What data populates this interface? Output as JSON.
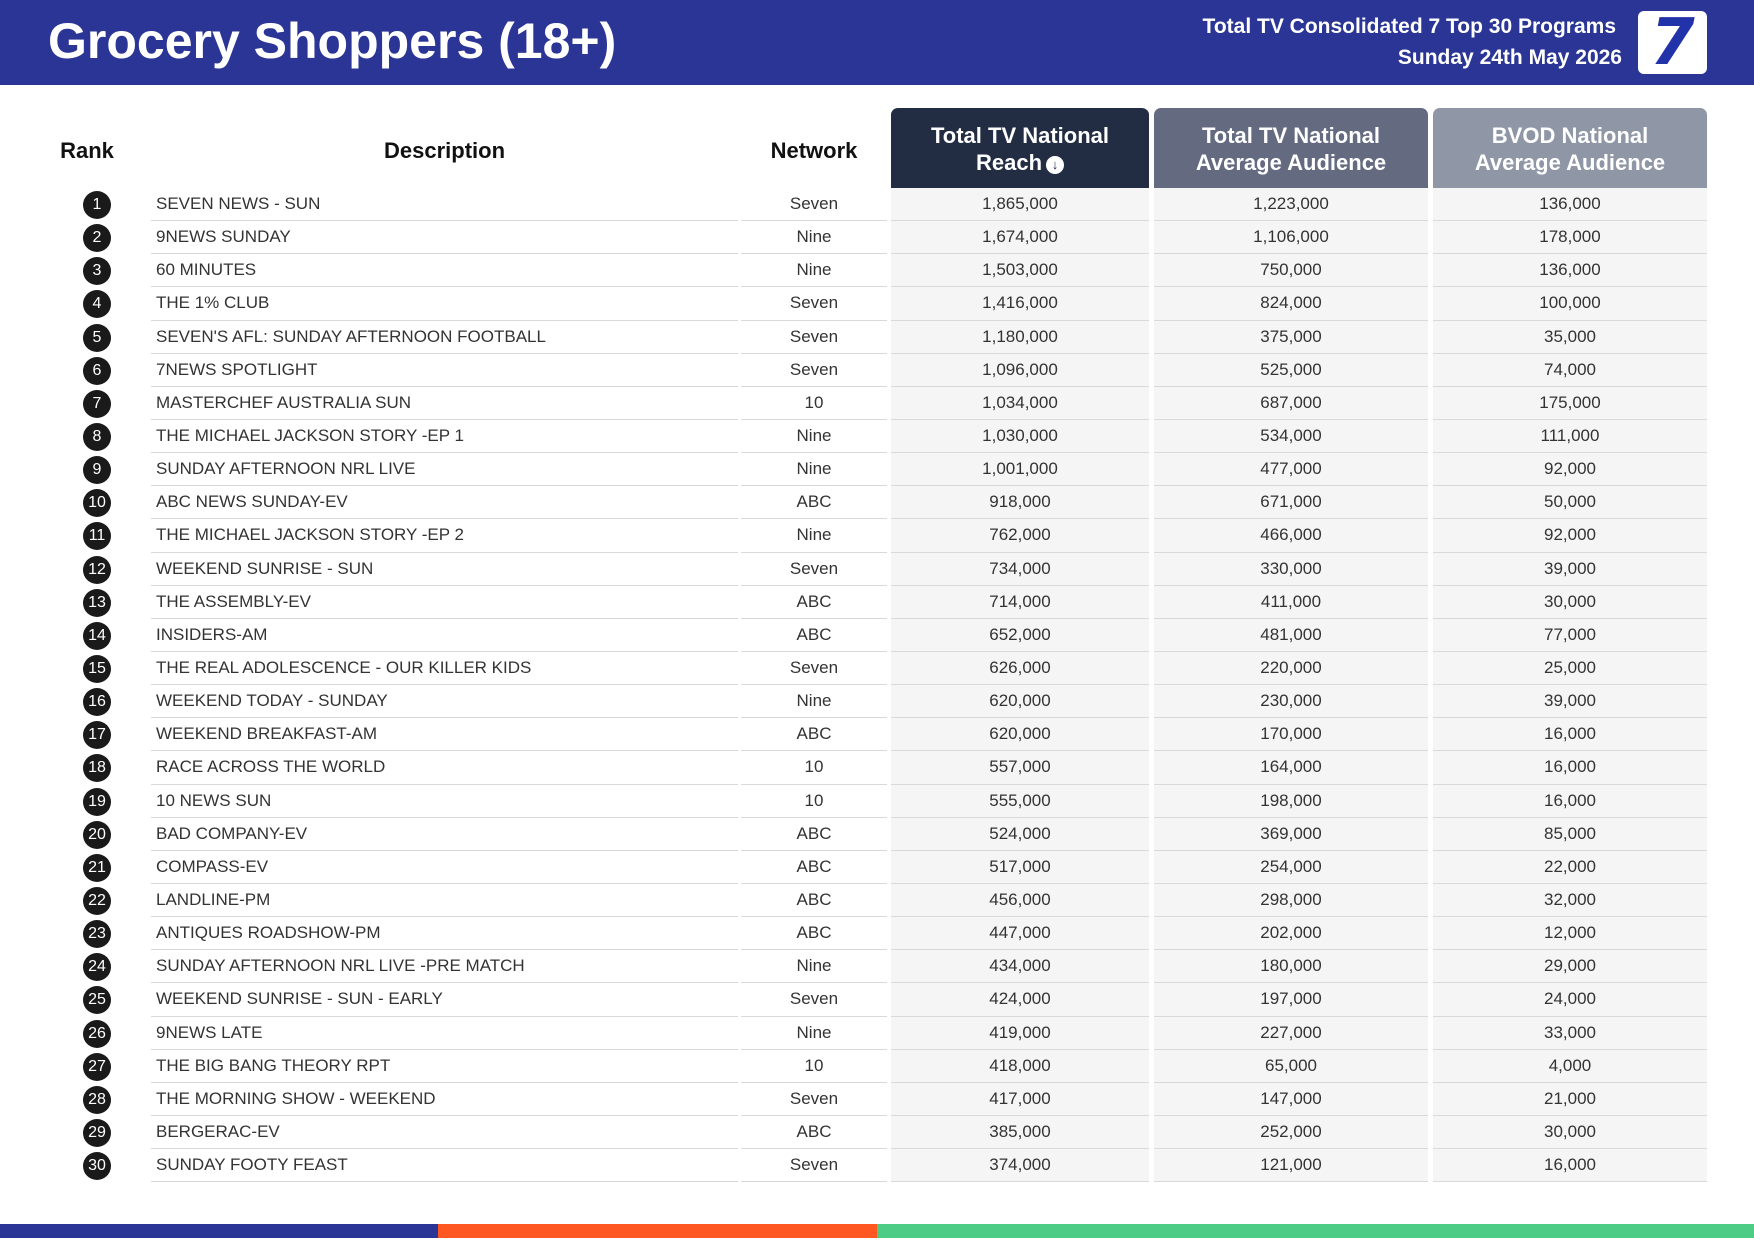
{
  "header": {
    "title": "Grocery Shoppers (18+)",
    "subtitle_line1": "Total TV Consolidated 7 Top 30 Programs",
    "subtitle_line2": "Sunday 24th May 2026",
    "logo_text": "7",
    "background_color": "#2b3595"
  },
  "columns": {
    "rank": "Rank",
    "description": "Description",
    "network": "Network",
    "reach_line1": "Total TV National",
    "reach_line2": "Reach",
    "reach_sort_icon": "arrow-down-circle-icon",
    "avg_line1": "Total TV National",
    "avg_line2": "Average Audience",
    "bvod_line1": "BVOD National",
    "bvod_line2": "Average Audience",
    "reach_header_color": "#222d44",
    "avg_header_color": "#646b80",
    "bvod_header_color": "#8f96a6"
  },
  "rows": [
    {
      "rank": "1",
      "description": "SEVEN NEWS - SUN",
      "network": "Seven",
      "reach": "1,865,000",
      "avg": "1,223,000",
      "bvod": "136,000"
    },
    {
      "rank": "2",
      "description": "9NEWS SUNDAY",
      "network": "Nine",
      "reach": "1,674,000",
      "avg": "1,106,000",
      "bvod": "178,000"
    },
    {
      "rank": "3",
      "description": "60 MINUTES",
      "network": "Nine",
      "reach": "1,503,000",
      "avg": "750,000",
      "bvod": "136,000"
    },
    {
      "rank": "4",
      "description": "THE 1% CLUB",
      "network": "Seven",
      "reach": "1,416,000",
      "avg": "824,000",
      "bvod": "100,000"
    },
    {
      "rank": "5",
      "description": "SEVEN'S AFL: SUNDAY AFTERNOON FOOTBALL",
      "network": "Seven",
      "reach": "1,180,000",
      "avg": "375,000",
      "bvod": "35,000"
    },
    {
      "rank": "6",
      "description": "7NEWS SPOTLIGHT",
      "network": "Seven",
      "reach": "1,096,000",
      "avg": "525,000",
      "bvod": "74,000"
    },
    {
      "rank": "7",
      "description": "MASTERCHEF AUSTRALIA SUN",
      "network": "10",
      "reach": "1,034,000",
      "avg": "687,000",
      "bvod": "175,000"
    },
    {
      "rank": "8",
      "description": "THE MICHAEL JACKSON STORY -EP 1",
      "network": "Nine",
      "reach": "1,030,000",
      "avg": "534,000",
      "bvod": "111,000"
    },
    {
      "rank": "9",
      "description": "SUNDAY AFTERNOON NRL LIVE",
      "network": "Nine",
      "reach": "1,001,000",
      "avg": "477,000",
      "bvod": "92,000"
    },
    {
      "rank": "10",
      "description": "ABC NEWS SUNDAY-EV",
      "network": "ABC",
      "reach": "918,000",
      "avg": "671,000",
      "bvod": "50,000"
    },
    {
      "rank": "11",
      "description": "THE MICHAEL JACKSON STORY -EP 2",
      "network": "Nine",
      "reach": "762,000",
      "avg": "466,000",
      "bvod": "92,000"
    },
    {
      "rank": "12",
      "description": "WEEKEND SUNRISE - SUN",
      "network": "Seven",
      "reach": "734,000",
      "avg": "330,000",
      "bvod": "39,000"
    },
    {
      "rank": "13",
      "description": "THE ASSEMBLY-EV",
      "network": "ABC",
      "reach": "714,000",
      "avg": "411,000",
      "bvod": "30,000"
    },
    {
      "rank": "14",
      "description": "INSIDERS-AM",
      "network": "ABC",
      "reach": "652,000",
      "avg": "481,000",
      "bvod": "77,000"
    },
    {
      "rank": "15",
      "description": "THE REAL ADOLESCENCE - OUR KILLER KIDS",
      "network": "Seven",
      "reach": "626,000",
      "avg": "220,000",
      "bvod": "25,000"
    },
    {
      "rank": "16",
      "description": "WEEKEND TODAY - SUNDAY",
      "network": "Nine",
      "reach": "620,000",
      "avg": "230,000",
      "bvod": "39,000"
    },
    {
      "rank": "17",
      "description": "WEEKEND BREAKFAST-AM",
      "network": "ABC",
      "reach": "620,000",
      "avg": "170,000",
      "bvod": "16,000"
    },
    {
      "rank": "18",
      "description": "RACE ACROSS THE WORLD",
      "network": "10",
      "reach": "557,000",
      "avg": "164,000",
      "bvod": "16,000"
    },
    {
      "rank": "19",
      "description": "10 NEWS SUN",
      "network": "10",
      "reach": "555,000",
      "avg": "198,000",
      "bvod": "16,000"
    },
    {
      "rank": "20",
      "description": "BAD COMPANY-EV",
      "network": "ABC",
      "reach": "524,000",
      "avg": "369,000",
      "bvod": "85,000"
    },
    {
      "rank": "21",
      "description": "COMPASS-EV",
      "network": "ABC",
      "reach": "517,000",
      "avg": "254,000",
      "bvod": "22,000"
    },
    {
      "rank": "22",
      "description": "LANDLINE-PM",
      "network": "ABC",
      "reach": "456,000",
      "avg": "298,000",
      "bvod": "32,000"
    },
    {
      "rank": "23",
      "description": "ANTIQUES ROADSHOW-PM",
      "network": "ABC",
      "reach": "447,000",
      "avg": "202,000",
      "bvod": "12,000"
    },
    {
      "rank": "24",
      "description": "SUNDAY AFTERNOON NRL LIVE -PRE MATCH",
      "network": "Nine",
      "reach": "434,000",
      "avg": "180,000",
      "bvod": "29,000"
    },
    {
      "rank": "25",
      "description": "WEEKEND SUNRISE - SUN - EARLY",
      "network": "Seven",
      "reach": "424,000",
      "avg": "197,000",
      "bvod": "24,000"
    },
    {
      "rank": "26",
      "description": "9NEWS LATE",
      "network": "Nine",
      "reach": "419,000",
      "avg": "227,000",
      "bvod": "33,000"
    },
    {
      "rank": "27",
      "description": "THE BIG BANG THEORY RPT",
      "network": "10",
      "reach": "418,000",
      "avg": "65,000",
      "bvod": "4,000"
    },
    {
      "rank": "28",
      "description": "THE MORNING SHOW - WEEKEND",
      "network": "Seven",
      "reach": "417,000",
      "avg": "147,000",
      "bvod": "21,000"
    },
    {
      "rank": "29",
      "description": "BERGERAC-EV",
      "network": "ABC",
      "reach": "385,000",
      "avg": "252,000",
      "bvod": "30,000"
    },
    {
      "rank": "30",
      "description": "SUNDAY FOOTY FEAST",
      "network": "Seven",
      "reach": "374,000",
      "avg": "121,000",
      "bvod": "16,000"
    }
  ],
  "footer_colors": [
    "#2b3595",
    "#ff5722",
    "#4ccc84"
  ]
}
